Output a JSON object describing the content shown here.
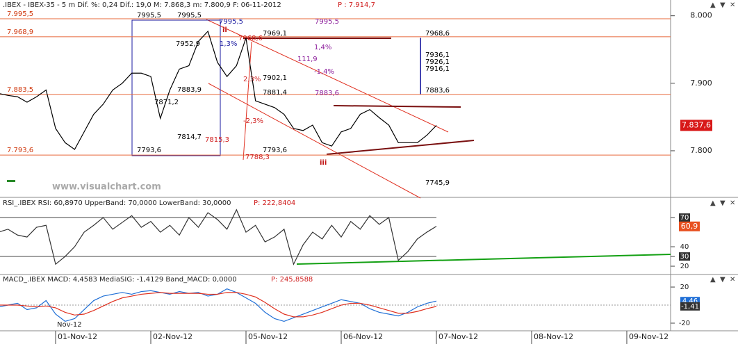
{
  "header": {
    "text": ".IBEX - IBEX-35 - 5 m Dif. %: 0,24 Dif.: 19,0 M: 7.868,3 m: 7.800,9 F: 06-11-2012",
    "price": "P : 7.914,7"
  },
  "watermark": "www.visualchart.com",
  "chart_data": [
    {
      "type": "line",
      "color": "#000000",
      "x": [
        -0.6,
        -0.5,
        -0.4,
        -0.3,
        -0.2,
        -0.1,
        0,
        0.1,
        0.2,
        0.3,
        0.4,
        0.5,
        0.6,
        0.7,
        0.8,
        0.9,
        1,
        1.1,
        1.2,
        1.3,
        1.4,
        1.5,
        1.6,
        1.7,
        1.8,
        1.9,
        2,
        2.1,
        2.2,
        2.3,
        2.4,
        2.5,
        2.6,
        2.7,
        2.8,
        2.9,
        3,
        3.1,
        3.2,
        3.3,
        3.4,
        3.5,
        3.6,
        3.7,
        3.8,
        3.9,
        4
      ],
      "values": [
        7885,
        7882,
        7880,
        7872,
        7880,
        7890,
        7833,
        7812,
        7802,
        7828,
        7854,
        7869,
        7890,
        7900,
        7915,
        7915,
        7910,
        7848,
        7890,
        7921,
        7926,
        7962,
        7977,
        7931,
        7910,
        7926,
        7967,
        7874,
        7869,
        7864,
        7854,
        7833,
        7830,
        7838,
        7812,
        7807,
        7828,
        7833,
        7854,
        7861,
        7849,
        7838,
        7812,
        7812,
        7812,
        7823,
        7837.6
      ],
      "xlim": [
        -0.584,
        6.46
      ],
      "ylim": [
        7732,
        8011
      ],
      "yticks": [
        {
          "value": 8000,
          "label": "8.000"
        },
        {
          "value": 7900,
          "label": "7.900"
        },
        {
          "value": 7800,
          "label": "7.800"
        }
      ],
      "current": {
        "value": 7837.6,
        "label": "7.837,6"
      },
      "levels": [
        {
          "value": 7995.5,
          "label": "7.995,5"
        },
        {
          "value": 7968.9,
          "label": "7.968,9"
        },
        {
          "value": 7883.5,
          "label": "7.883,5"
        },
        {
          "value": 7793.6,
          "label": "7.793,6"
        }
      ],
      "annotations": [
        "7995,5",
        "7995,5",
        "7995,5",
        "7969,1",
        "7968,6",
        "7936,1",
        "7926,1",
        "7916,1",
        "7883,6",
        "7902,1",
        "7881,4",
        "7883,6",
        "7995,5",
        "1,4%",
        "-1,4%",
        "111,9",
        "2,3%",
        "-2,3%",
        "7793,6",
        "7793,6",
        "7814,7",
        "7815,3",
        "7788,3",
        "7745,9",
        "7952,9",
        "1,3%",
        "7883,9",
        "7871,2",
        "ii",
        "iii",
        "7968,6"
      ]
    },
    {
      "type": "line",
      "title": "RSI_.IBEX RSI: 60,8970 UpperBand: 70,0000 LowerBand: 30,0000",
      "subtitle": "P: 222,8404",
      "color": "#333333",
      "x": [
        -0.6,
        -0.5,
        -0.4,
        -0.3,
        -0.2,
        -0.1,
        0,
        0.1,
        0.2,
        0.3,
        0.4,
        0.5,
        0.6,
        0.7,
        0.8,
        0.9,
        1,
        1.1,
        1.2,
        1.3,
        1.4,
        1.5,
        1.6,
        1.7,
        1.8,
        1.9,
        2,
        2.1,
        2.2,
        2.3,
        2.4,
        2.5,
        2.6,
        2.7,
        2.8,
        2.9,
        3,
        3.1,
        3.2,
        3.3,
        3.4,
        3.5,
        3.6,
        3.7,
        3.8,
        3.9,
        4
      ],
      "values": [
        55,
        58,
        52,
        50,
        60,
        62,
        22,
        30,
        40,
        55,
        62,
        70,
        58,
        65,
        72,
        60,
        66,
        55,
        62,
        52,
        70,
        60,
        75,
        68,
        58,
        78,
        55,
        62,
        45,
        50,
        58,
        22,
        42,
        55,
        48,
        62,
        50,
        66,
        58,
        72,
        63,
        70,
        26,
        35,
        48,
        55,
        61
      ],
      "xlim": [
        -0.584,
        6.46
      ],
      "ylim": [
        13.6,
        82.9
      ],
      "yticks": [
        20,
        30,
        40,
        70
      ],
      "bands": [
        70,
        30
      ],
      "current": {
        "value": 60.9,
        "label": "60,9"
      }
    },
    {
      "type": "line",
      "title": "MACD_.IBEX MACD: 4,4583 MediaSIG: -1,4129 Band_MACD: 0,0000",
      "subtitle": "P: 245,8588",
      "x": [
        -0.6,
        -0.5,
        -0.4,
        -0.3,
        -0.2,
        -0.1,
        0,
        0.1,
        0.2,
        0.3,
        0.4,
        0.5,
        0.6,
        0.7,
        0.8,
        0.9,
        1,
        1.1,
        1.2,
        1.3,
        1.4,
        1.5,
        1.6,
        1.7,
        1.8,
        1.9,
        2,
        2.1,
        2.2,
        2.3,
        2.4,
        2.5,
        2.6,
        2.7,
        2.8,
        2.9,
        3,
        3.1,
        3.2,
        3.3,
        3.4,
        3.5,
        3.6,
        3.7,
        3.8,
        3.9,
        4
      ],
      "series": [
        {
          "name": "MACD",
          "color": "#1f6fd6",
          "values": [
            -2,
            0,
            2,
            -5,
            -3,
            5,
            -10,
            -18,
            -15,
            -5,
            5,
            10,
            12,
            14,
            12,
            15,
            16,
            14,
            12,
            15,
            13,
            14,
            10,
            12,
            18,
            14,
            8,
            2,
            -8,
            -15,
            -18,
            -14,
            -10,
            -6,
            -2,
            2,
            6,
            4,
            2,
            -4,
            -8,
            -10,
            -12,
            -8,
            -2,
            2,
            4.46
          ]
        },
        {
          "name": "MediaSIG",
          "color": "#e0301e",
          "values": [
            0,
            0,
            0,
            -1,
            -2,
            -1,
            -3,
            -8,
            -11,
            -10,
            -6,
            -1,
            4,
            8,
            10,
            12,
            13,
            14,
            13,
            13,
            13,
            13,
            12,
            12,
            14,
            14,
            12,
            9,
            3,
            -4,
            -10,
            -13,
            -13,
            -11,
            -8,
            -4,
            0,
            2,
            2,
            0,
            -3,
            -6,
            -9,
            -9,
            -7,
            -4,
            -1.41
          ]
        }
      ],
      "xlim": [
        -0.584,
        6.46
      ],
      "ylim": [
        -27.7,
        26.2
      ],
      "yticks": [
        20,
        -20
      ],
      "current": [
        {
          "value": 4.46,
          "label": "4,46"
        },
        {
          "value": -1.41,
          "label": "-1,41"
        }
      ],
      "xticks": [
        {
          "value": 0,
          "label": "01-Nov-12"
        },
        {
          "value": 1,
          "label": "02-Nov-12"
        },
        {
          "value": 2,
          "label": "05-Nov-12"
        },
        {
          "value": 3,
          "label": "06-Nov-12"
        },
        {
          "value": 4,
          "label": "07-Nov-12"
        },
        {
          "value": 5,
          "label": "08-Nov-12"
        },
        {
          "value": 6,
          "label": "09-Nov-12"
        }
      ],
      "xnote": "Nov-12"
    }
  ]
}
